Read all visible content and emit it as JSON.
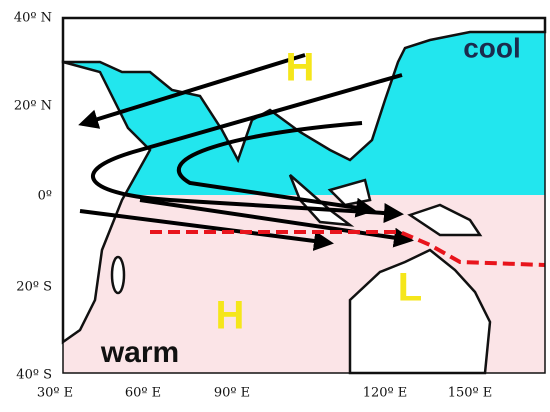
{
  "map": {
    "lat_labels": [
      "40º N",
      "20º N",
      "0º",
      "20º S",
      "40º S"
    ],
    "lon_labels": [
      "30º E",
      "60º E",
      "90º E",
      "120º E",
      "150º E"
    ],
    "region_labels": {
      "north": "cool",
      "south": "warm"
    },
    "pressure_labels": [
      "H",
      "H",
      "L"
    ]
  }
}
